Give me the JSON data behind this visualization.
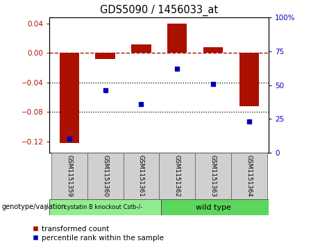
{
  "title": "GDS5090 / 1456033_at",
  "samples": [
    "GSM1151359",
    "GSM1151360",
    "GSM1151361",
    "GSM1151362",
    "GSM1151363",
    "GSM1151364"
  ],
  "red_values": [
    -0.122,
    -0.008,
    0.012,
    0.04,
    0.008,
    -0.072
  ],
  "blue_values_pct": [
    10,
    46,
    36,
    62,
    51,
    23
  ],
  "group1_label": "cystatin B knockout Cstb-/-",
  "group2_label": "wild type",
  "group1_color": "#90EE90",
  "group2_color": "#5CD65C",
  "ylim_left": [
    -0.135,
    0.048
  ],
  "ylim_right": [
    0,
    100
  ],
  "yticks_left": [
    0.04,
    0.0,
    -0.04,
    -0.08,
    -0.12
  ],
  "yticks_right": [
    100,
    75,
    50,
    25,
    0
  ],
  "red_color": "#AA1100",
  "blue_color": "#0000BB",
  "bar_width": 0.55,
  "legend_red": "transformed count",
  "legend_blue": "percentile rank within the sample",
  "group_label": "genotype/variation"
}
